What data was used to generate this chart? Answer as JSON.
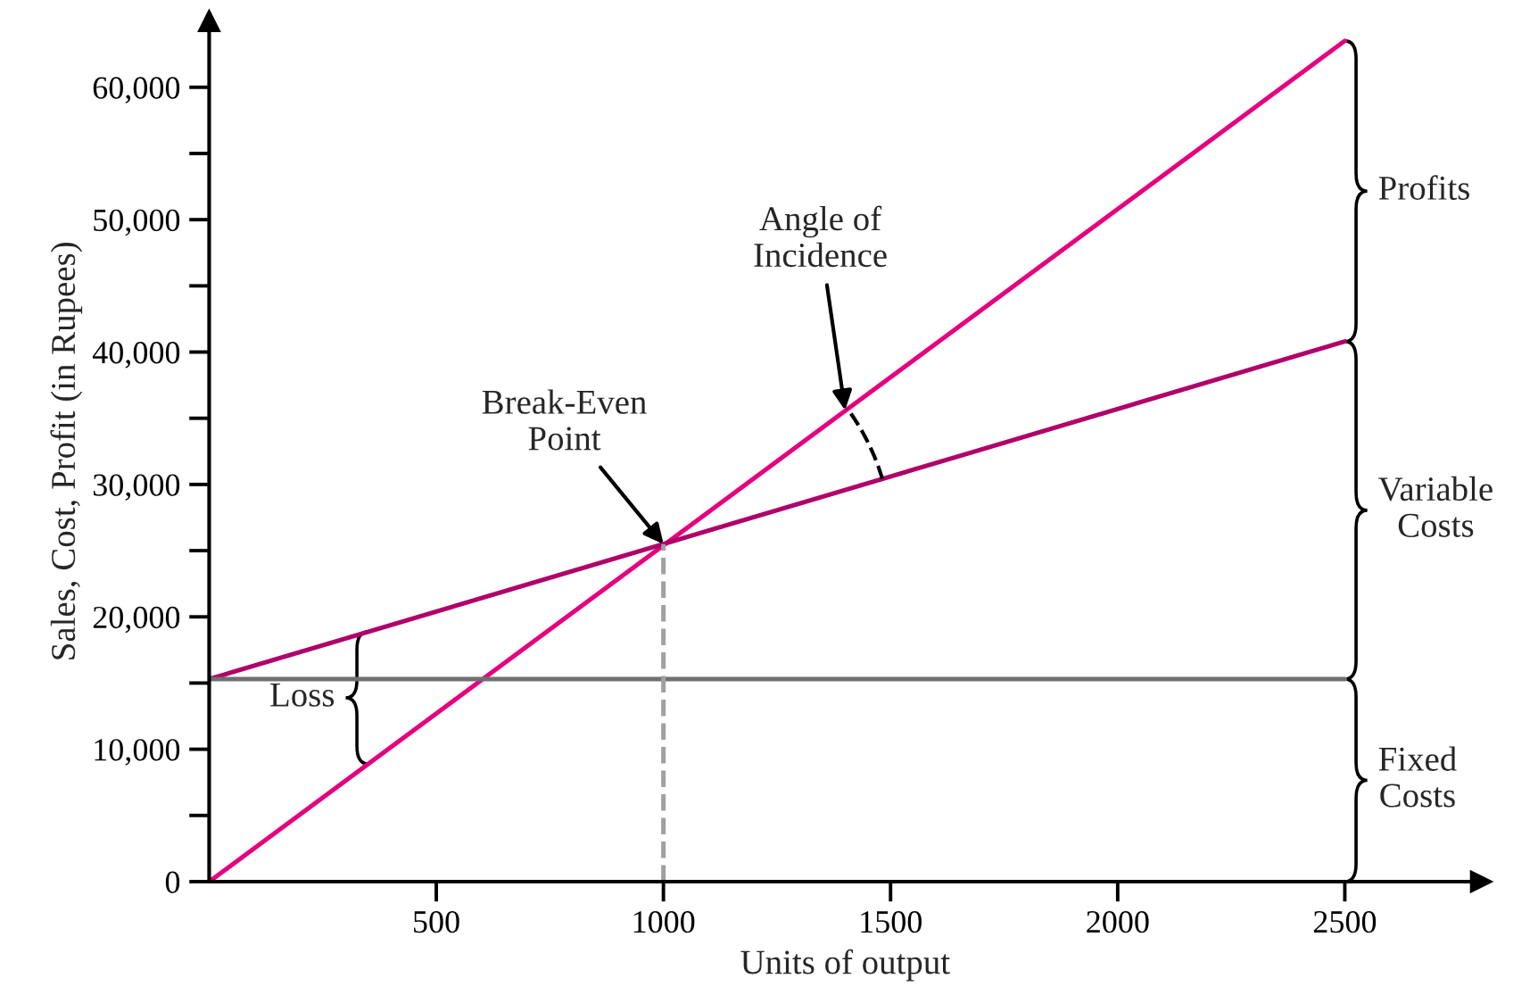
{
  "chart_data": {
    "type": "line",
    "xlabel": "Units of output",
    "ylabel": "Sales, Cost, Profit (in Rupees)",
    "series": [
      {
        "x": [
          0,
          2500
        ],
        "values": [
          0,
          63500
        ],
        "color": "#e6007e",
        "line_style": "solid"
      },
      {
        "x": [
          0,
          2500
        ],
        "values": [
          15300,
          40800
        ],
        "color": "#b0006a",
        "line_style": "solid"
      },
      {
        "x": [
          0,
          2500
        ],
        "values": [
          15300,
          15300
        ],
        "color": "#707070",
        "line_style": "solid"
      },
      {
        "x": [
          1000,
          1000
        ],
        "values": [
          0,
          25500
        ],
        "color": "#a0a0a0",
        "line_style": "dashed"
      }
    ],
    "xlim": [
      0,
      2800
    ],
    "ylim": [
      0,
      65000
    ],
    "xticks": [
      500,
      1000,
      1500,
      2000,
      2500
    ],
    "yticks": [
      {
        "value": 0,
        "label": "0"
      },
      {
        "value": 5000,
        "label": null
      },
      {
        "value": 10000,
        "label": "10,000"
      },
      {
        "value": 15000,
        "label": null
      },
      {
        "value": 20000,
        "label": "20,000"
      },
      {
        "value": 25000,
        "label": null
      },
      {
        "value": 30000,
        "label": "30,000"
      },
      {
        "value": 35000,
        "label": null
      },
      {
        "value": 40000,
        "label": "40,000"
      },
      {
        "value": 45000,
        "label": null
      },
      {
        "value": 50000,
        "label": "50,000"
      },
      {
        "value": 55000,
        "label": null
      },
      {
        "value": 60000,
        "label": "60,000"
      }
    ],
    "grid": false,
    "legend": false,
    "marker": "none",
    "annotations": [
      {
        "text": "Break-Even\nPoint",
        "x": 1000,
        "y": 25500
      },
      {
        "text": "Angle of\nIncidence",
        "x": 1400,
        "y": 35600
      },
      "Loss",
      "Profits",
      "Variable\nCosts",
      "Fixed\nCosts"
    ]
  }
}
